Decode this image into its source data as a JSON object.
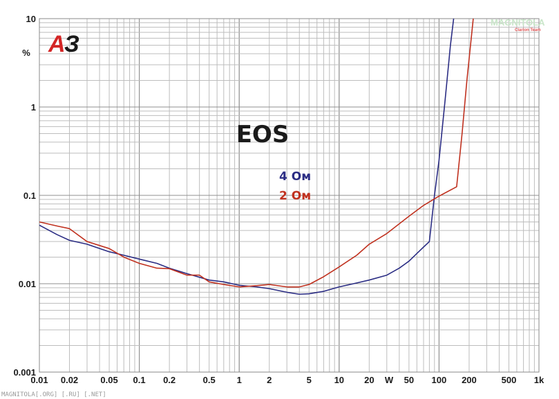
{
  "chart_data": {
    "type": "line",
    "title": "EOS",
    "ylabel": "%",
    "xlabel": "W",
    "x_scale": "log",
    "y_scale": "log",
    "xlim": [
      0.01,
      1000
    ],
    "ylim": [
      0.001,
      10
    ],
    "grid": true,
    "legend_placement": "center",
    "x_tick_labels": [
      {
        "value": 0.01,
        "label": "0.01"
      },
      {
        "value": 0.02,
        "label": "0.02"
      },
      {
        "value": 0.05,
        "label": "0.05"
      },
      {
        "value": 0.1,
        "label": "0.1"
      },
      {
        "value": 0.2,
        "label": "0.2"
      },
      {
        "value": 0.5,
        "label": "0.5"
      },
      {
        "value": 1,
        "label": "1"
      },
      {
        "value": 2,
        "label": "2"
      },
      {
        "value": 5,
        "label": "5"
      },
      {
        "value": 10,
        "label": "10"
      },
      {
        "value": 20,
        "label": "20"
      },
      {
        "value": 50,
        "label": "50"
      },
      {
        "value": 100,
        "label": "100"
      },
      {
        "value": 200,
        "label": "200"
      },
      {
        "value": 500,
        "label": "500"
      },
      {
        "value": 1000,
        "label": "1k"
      }
    ],
    "y_tick_labels": [
      {
        "value": 10,
        "label": "10"
      },
      {
        "value": 1,
        "label": "1"
      },
      {
        "value": 0.1,
        "label": "0.1"
      },
      {
        "value": 0.01,
        "label": "0.01"
      },
      {
        "value": 0.001,
        "label": "0.001"
      }
    ],
    "series": [
      {
        "name": "4 Ом",
        "color": "#2b2d84",
        "points": [
          [
            0.01,
            0.046
          ],
          [
            0.015,
            0.036
          ],
          [
            0.02,
            0.031
          ],
          [
            0.03,
            0.028
          ],
          [
            0.05,
            0.023
          ],
          [
            0.07,
            0.021
          ],
          [
            0.1,
            0.019
          ],
          [
            0.15,
            0.017
          ],
          [
            0.2,
            0.015
          ],
          [
            0.3,
            0.013
          ],
          [
            0.5,
            0.011
          ],
          [
            0.7,
            0.0105
          ],
          [
            1,
            0.0096
          ],
          [
            1.5,
            0.0092
          ],
          [
            2,
            0.0088
          ],
          [
            3,
            0.008
          ],
          [
            4,
            0.0076
          ],
          [
            5,
            0.0077
          ],
          [
            7,
            0.0082
          ],
          [
            10,
            0.0092
          ],
          [
            15,
            0.0102
          ],
          [
            20,
            0.011
          ],
          [
            30,
            0.0125
          ],
          [
            40,
            0.015
          ],
          [
            50,
            0.018
          ],
          [
            60,
            0.022
          ],
          [
            70,
            0.026
          ],
          [
            80,
            0.03
          ],
          [
            90,
            0.1
          ],
          [
            100,
            0.25
          ],
          [
            115,
            1.2
          ],
          [
            130,
            5
          ],
          [
            140,
            10
          ]
        ]
      },
      {
        "name": "2 Ом",
        "color": "#c0311f",
        "points": [
          [
            0.01,
            0.05
          ],
          [
            0.015,
            0.045
          ],
          [
            0.02,
            0.042
          ],
          [
            0.03,
            0.03
          ],
          [
            0.05,
            0.025
          ],
          [
            0.07,
            0.02
          ],
          [
            0.1,
            0.017
          ],
          [
            0.15,
            0.015
          ],
          [
            0.2,
            0.0148
          ],
          [
            0.3,
            0.0125
          ],
          [
            0.4,
            0.0125
          ],
          [
            0.5,
            0.0105
          ],
          [
            0.7,
            0.0098
          ],
          [
            1,
            0.0092
          ],
          [
            1.5,
            0.0095
          ],
          [
            2,
            0.0098
          ],
          [
            3,
            0.0092
          ],
          [
            4,
            0.0092
          ],
          [
            5,
            0.0098
          ],
          [
            7,
            0.012
          ],
          [
            10,
            0.0155
          ],
          [
            15,
            0.021
          ],
          [
            20,
            0.028
          ],
          [
            30,
            0.037
          ],
          [
            50,
            0.058
          ],
          [
            70,
            0.077
          ],
          [
            100,
            0.098
          ],
          [
            150,
            0.125
          ],
          [
            170,
            0.5
          ],
          [
            190,
            2
          ],
          [
            210,
            6
          ],
          [
            220,
            10
          ]
        ]
      }
    ]
  },
  "branding": {
    "logo_a": "А",
    "logo_3": "З",
    "logo_color_a": "#d42525",
    "logo_color_3": "#1a1a1a",
    "credit": "MAGNITOLA[.ORG] [.RU] [.NET]",
    "watermark": "MAGNITOLA",
    "watermark_sub": "Clarion Team"
  }
}
